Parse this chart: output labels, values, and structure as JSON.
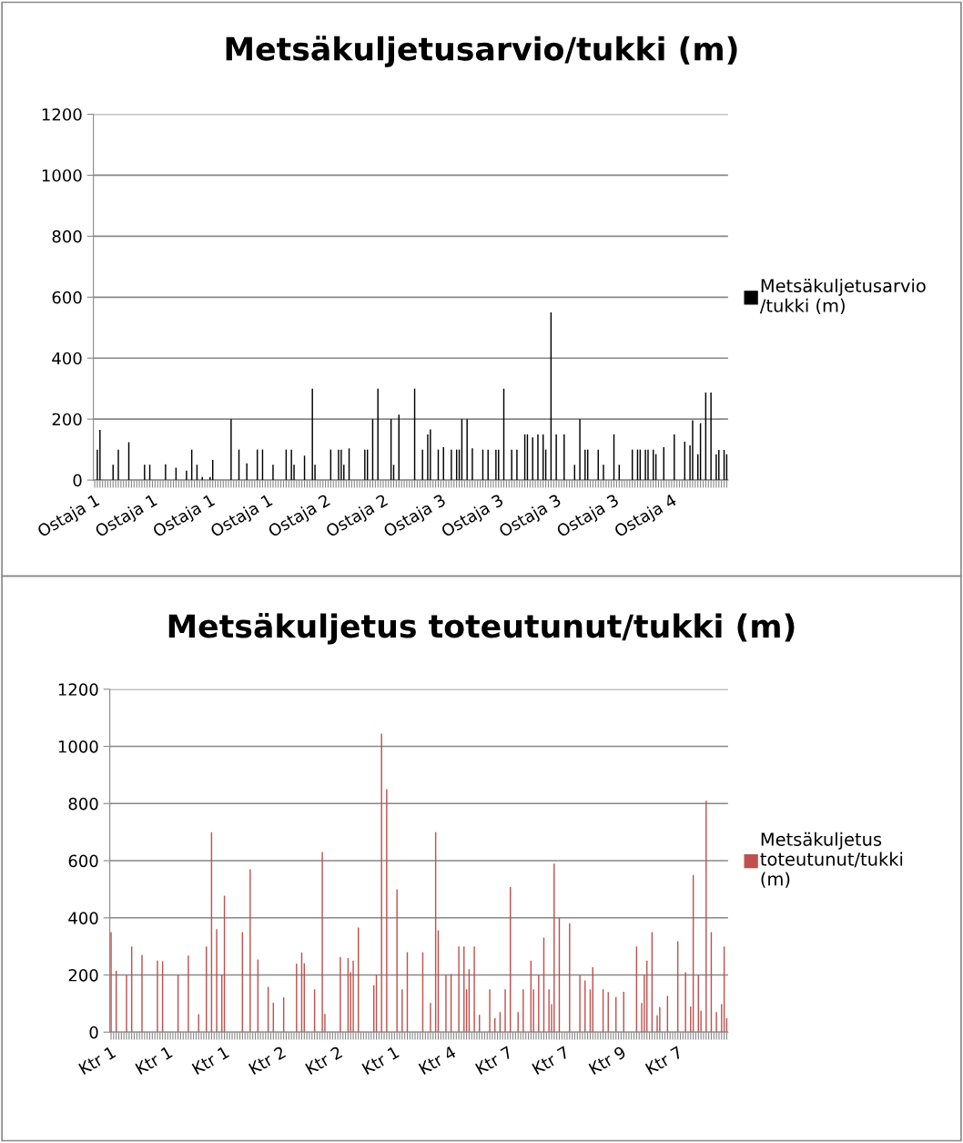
{
  "chart_data": [
    {
      "type": "bar",
      "title": "Metsäkuljetusarvio/tukki (m)",
      "categories": [
        "Ostaja 1",
        null,
        null,
        null,
        null,
        null,
        null,
        null,
        null,
        null,
        null,
        null,
        null,
        null,
        null,
        null,
        null,
        null,
        null,
        null,
        null,
        null,
        "Ostaja 1",
        null,
        null,
        null,
        null,
        null,
        null,
        null,
        null,
        null,
        null,
        null,
        null,
        null,
        null,
        null,
        null,
        null,
        null,
        null,
        null,
        null,
        "Ostaja 1",
        null,
        null,
        null,
        null,
        null,
        null,
        null,
        null,
        null,
        null,
        null,
        null,
        null,
        null,
        null,
        null,
        null,
        null,
        null,
        null,
        null,
        "Ostaja 1",
        null,
        null,
        null,
        null,
        null,
        null,
        null,
        null,
        null,
        null,
        null,
        null,
        null,
        null,
        null,
        null,
        null,
        null,
        null,
        null,
        null,
        "Ostaja 2",
        null,
        null,
        null,
        null,
        null,
        null,
        null,
        null,
        null,
        null,
        null,
        null,
        null,
        null,
        null,
        null,
        null,
        null,
        null,
        null,
        null,
        "Ostaja 2",
        null,
        null,
        null,
        null,
        null,
        null,
        null,
        null,
        null,
        null,
        null,
        null,
        null,
        null,
        null,
        null,
        null,
        null,
        null,
        null,
        null,
        "Ostaja 3",
        null,
        null,
        null,
        null,
        null,
        null,
        null,
        null,
        null,
        null,
        null,
        null,
        null,
        null,
        null,
        null,
        null,
        null,
        null,
        null,
        null,
        "Ostaja 3",
        null,
        null,
        null,
        null,
        null,
        null,
        null,
        null,
        null,
        null,
        null,
        null,
        null,
        null,
        null,
        null,
        null,
        null,
        null,
        null,
        null,
        "Ostaja 3",
        null,
        null,
        null,
        null,
        null,
        null,
        null,
        null,
        null,
        null,
        null,
        null,
        null,
        null,
        null,
        null,
        null,
        null,
        null,
        null,
        null,
        "Ostaja 3",
        null,
        null,
        null,
        null,
        null,
        null,
        null,
        null,
        null,
        null,
        null,
        null,
        null,
        null,
        null,
        null,
        null,
        null,
        null,
        null,
        null,
        "Ostaja 4",
        null,
        null,
        null,
        null,
        null,
        null,
        null,
        null,
        null,
        null,
        null,
        null,
        null,
        null,
        null,
        null,
        null,
        null,
        null,
        null,
        null
      ],
      "series": [
        {
          "name": "Metsäkuljetusarvio\n/tukki (m)",
          "color": "#000000",
          "values": [
            null,
            100,
            165,
            null,
            null,
            null,
            null,
            50,
            null,
            100,
            null,
            null,
            null,
            124,
            null,
            null,
            null,
            null,
            null,
            50,
            null,
            50,
            null,
            null,
            null,
            null,
            null,
            52,
            null,
            null,
            null,
            41,
            null,
            null,
            null,
            31,
            null,
            100,
            null,
            50,
            null,
            10,
            null,
            null,
            10,
            66,
            null,
            null,
            null,
            null,
            null,
            null,
            200,
            null,
            null,
            100,
            null,
            null,
            55,
            null,
            null,
            null,
            100,
            null,
            100,
            null,
            null,
            null,
            50,
            null,
            null,
            null,
            null,
            100,
            null,
            100,
            50,
            null,
            null,
            null,
            80,
            null,
            null,
            300,
            50,
            null,
            null,
            null,
            null,
            null,
            100,
            null,
            null,
            100,
            100,
            50,
            null,
            104,
            null,
            null,
            null,
            null,
            null,
            100,
            100,
            null,
            200,
            null,
            300,
            null,
            null,
            null,
            null,
            200,
            50,
            null,
            215,
            null,
            null,
            null,
            null,
            null,
            300,
            null,
            null,
            100,
            null,
            150,
            166,
            null,
            null,
            100,
            null,
            108,
            null,
            null,
            100,
            null,
            100,
            100,
            200,
            null,
            200,
            null,
            104,
            null,
            null,
            null,
            100,
            null,
            100,
            null,
            null,
            100,
            100,
            null,
            300,
            null,
            null,
            100,
            null,
            100,
            null,
            null,
            150,
            150,
            null,
            140,
            null,
            150,
            null,
            150,
            100,
            null,
            550,
            null,
            150,
            null,
            null,
            150,
            null,
            null,
            null,
            50,
            null,
            200,
            null,
            100,
            100,
            null,
            null,
            null,
            100,
            null,
            50,
            null,
            null,
            null,
            150,
            null,
            50,
            null,
            null,
            null,
            null,
            100,
            null,
            100,
            100,
            null,
            100,
            100,
            null,
            100,
            85,
            null,
            null,
            108,
            null,
            null,
            null,
            150,
            null,
            null,
            null,
            126,
            null,
            114,
            196,
            null,
            85,
            186,
            null,
            287,
            null,
            287,
            null,
            85,
            99,
            null,
            99,
            85
          ]
        }
      ],
      "ylim": [
        0,
        1200
      ],
      "yticks": [
        0,
        200,
        400,
        600,
        800,
        1000,
        1200
      ],
      "grid": "y",
      "legend": "right"
    },
    {
      "type": "bar",
      "title": "Metsäkuljetus toteutunut/tukki (m)",
      "categories": [
        "Ktr 1",
        null,
        null,
        null,
        null,
        null,
        null,
        null,
        null,
        null,
        null,
        null,
        null,
        null,
        null,
        null,
        null,
        null,
        null,
        null,
        null,
        null,
        "Ktr 1",
        null,
        null,
        null,
        null,
        null,
        null,
        null,
        null,
        null,
        null,
        null,
        null,
        null,
        null,
        null,
        null,
        null,
        null,
        null,
        null,
        null,
        "Ktr 1",
        null,
        null,
        null,
        null,
        null,
        null,
        null,
        null,
        null,
        null,
        null,
        null,
        null,
        null,
        null,
        null,
        null,
        null,
        null,
        null,
        null,
        "Ktr 2",
        null,
        null,
        null,
        null,
        null,
        null,
        null,
        null,
        null,
        null,
        null,
        null,
        null,
        null,
        null,
        null,
        null,
        null,
        null,
        null,
        null,
        "Ktr 2",
        null,
        null,
        null,
        null,
        null,
        null,
        null,
        null,
        null,
        null,
        null,
        null,
        null,
        null,
        null,
        null,
        null,
        null,
        null,
        null,
        null,
        "Ktr 1",
        null,
        null,
        null,
        null,
        null,
        null,
        null,
        null,
        null,
        null,
        null,
        null,
        null,
        null,
        null,
        null,
        null,
        null,
        null,
        null,
        null,
        "Ktr 4",
        null,
        null,
        null,
        null,
        null,
        null,
        null,
        null,
        null,
        null,
        null,
        null,
        null,
        null,
        null,
        null,
        null,
        null,
        null,
        null,
        null,
        "Ktr 7",
        null,
        null,
        null,
        null,
        null,
        null,
        null,
        null,
        null,
        null,
        null,
        null,
        null,
        null,
        null,
        null,
        null,
        null,
        null,
        null,
        null,
        "Ktr 7",
        null,
        null,
        null,
        null,
        null,
        null,
        null,
        null,
        null,
        null,
        null,
        null,
        null,
        null,
        null,
        null,
        null,
        null,
        null,
        null,
        null,
        "Ktr 9",
        null,
        null,
        null,
        null,
        null,
        null,
        null,
        null,
        null,
        null,
        null,
        null,
        null,
        null,
        null,
        null,
        null,
        null,
        null,
        null,
        null,
        "Ktr 7",
        null,
        null,
        null,
        null,
        null,
        null,
        null,
        null,
        null,
        null,
        null,
        null,
        null,
        null,
        null,
        null,
        null,
        null,
        null
      ],
      "series": [
        {
          "name": "Metsäkuljetus\ntoteutunut/tukki\n(m)",
          "color": "#c0504d",
          "values": [
            350,
            null,
            215,
            null,
            null,
            null,
            200,
            null,
            300,
            null,
            null,
            null,
            270,
            null,
            null,
            null,
            null,
            null,
            250,
            null,
            248,
            null,
            null,
            null,
            null,
            null,
            200,
            null,
            null,
            null,
            268,
            null,
            null,
            null,
            63,
            null,
            null,
            300,
            null,
            700,
            null,
            360,
            null,
            200,
            477,
            null,
            null,
            null,
            null,
            null,
            null,
            350,
            null,
            null,
            570,
            null,
            null,
            254,
            null,
            null,
            null,
            159,
            null,
            103,
            null,
            null,
            null,
            122,
            null,
            null,
            null,
            null,
            240,
            null,
            279,
            241,
            null,
            null,
            null,
            150,
            null,
            null,
            630,
            64,
            null,
            null,
            null,
            null,
            null,
            263,
            null,
            null,
            259,
            210,
            250,
            null,
            366,
            null,
            null,
            null,
            null,
            null,
            164,
            200,
            null,
            1045,
            null,
            850,
            null,
            null,
            null,
            500,
            null,
            150,
            null,
            280,
            null,
            null,
            null,
            null,
            null,
            279,
            null,
            null,
            102,
            null,
            700,
            356,
            null,
            null,
            200,
            null,
            203,
            null,
            null,
            300,
            null,
            300,
            150,
            220,
            null,
            300,
            null,
            61,
            null,
            null,
            null,
            150,
            null,
            49,
            null,
            70,
            null,
            150,
            null,
            508,
            null,
            null,
            70,
            null,
            150,
            null,
            null,
            250,
            150,
            null,
            200,
            null,
            331,
            null,
            150,
            98,
            590,
            null,
            400,
            null,
            null,
            null,
            381,
            null,
            null,
            null,
            200,
            null,
            181,
            null,
            150,
            227,
            null,
            null,
            null,
            150,
            null,
            140,
            null,
            null,
            123,
            null,
            null,
            141,
            null,
            null,
            null,
            null,
            300,
            null,
            102,
            200,
            250,
            null,
            350,
            null,
            59,
            88,
            null,
            null,
            127,
            null,
            null,
            null,
            318,
            null,
            null,
            210,
            null,
            90,
            550,
            null,
            200,
            75,
            null,
            810,
            null,
            350,
            null,
            70,
            null,
            98,
            300,
            49
          ]
        }
      ],
      "ylim": [
        0,
        1200
      ],
      "yticks": [
        0,
        200,
        400,
        600,
        800,
        1000,
        1200
      ],
      "grid": "y",
      "legend": "right"
    }
  ]
}
